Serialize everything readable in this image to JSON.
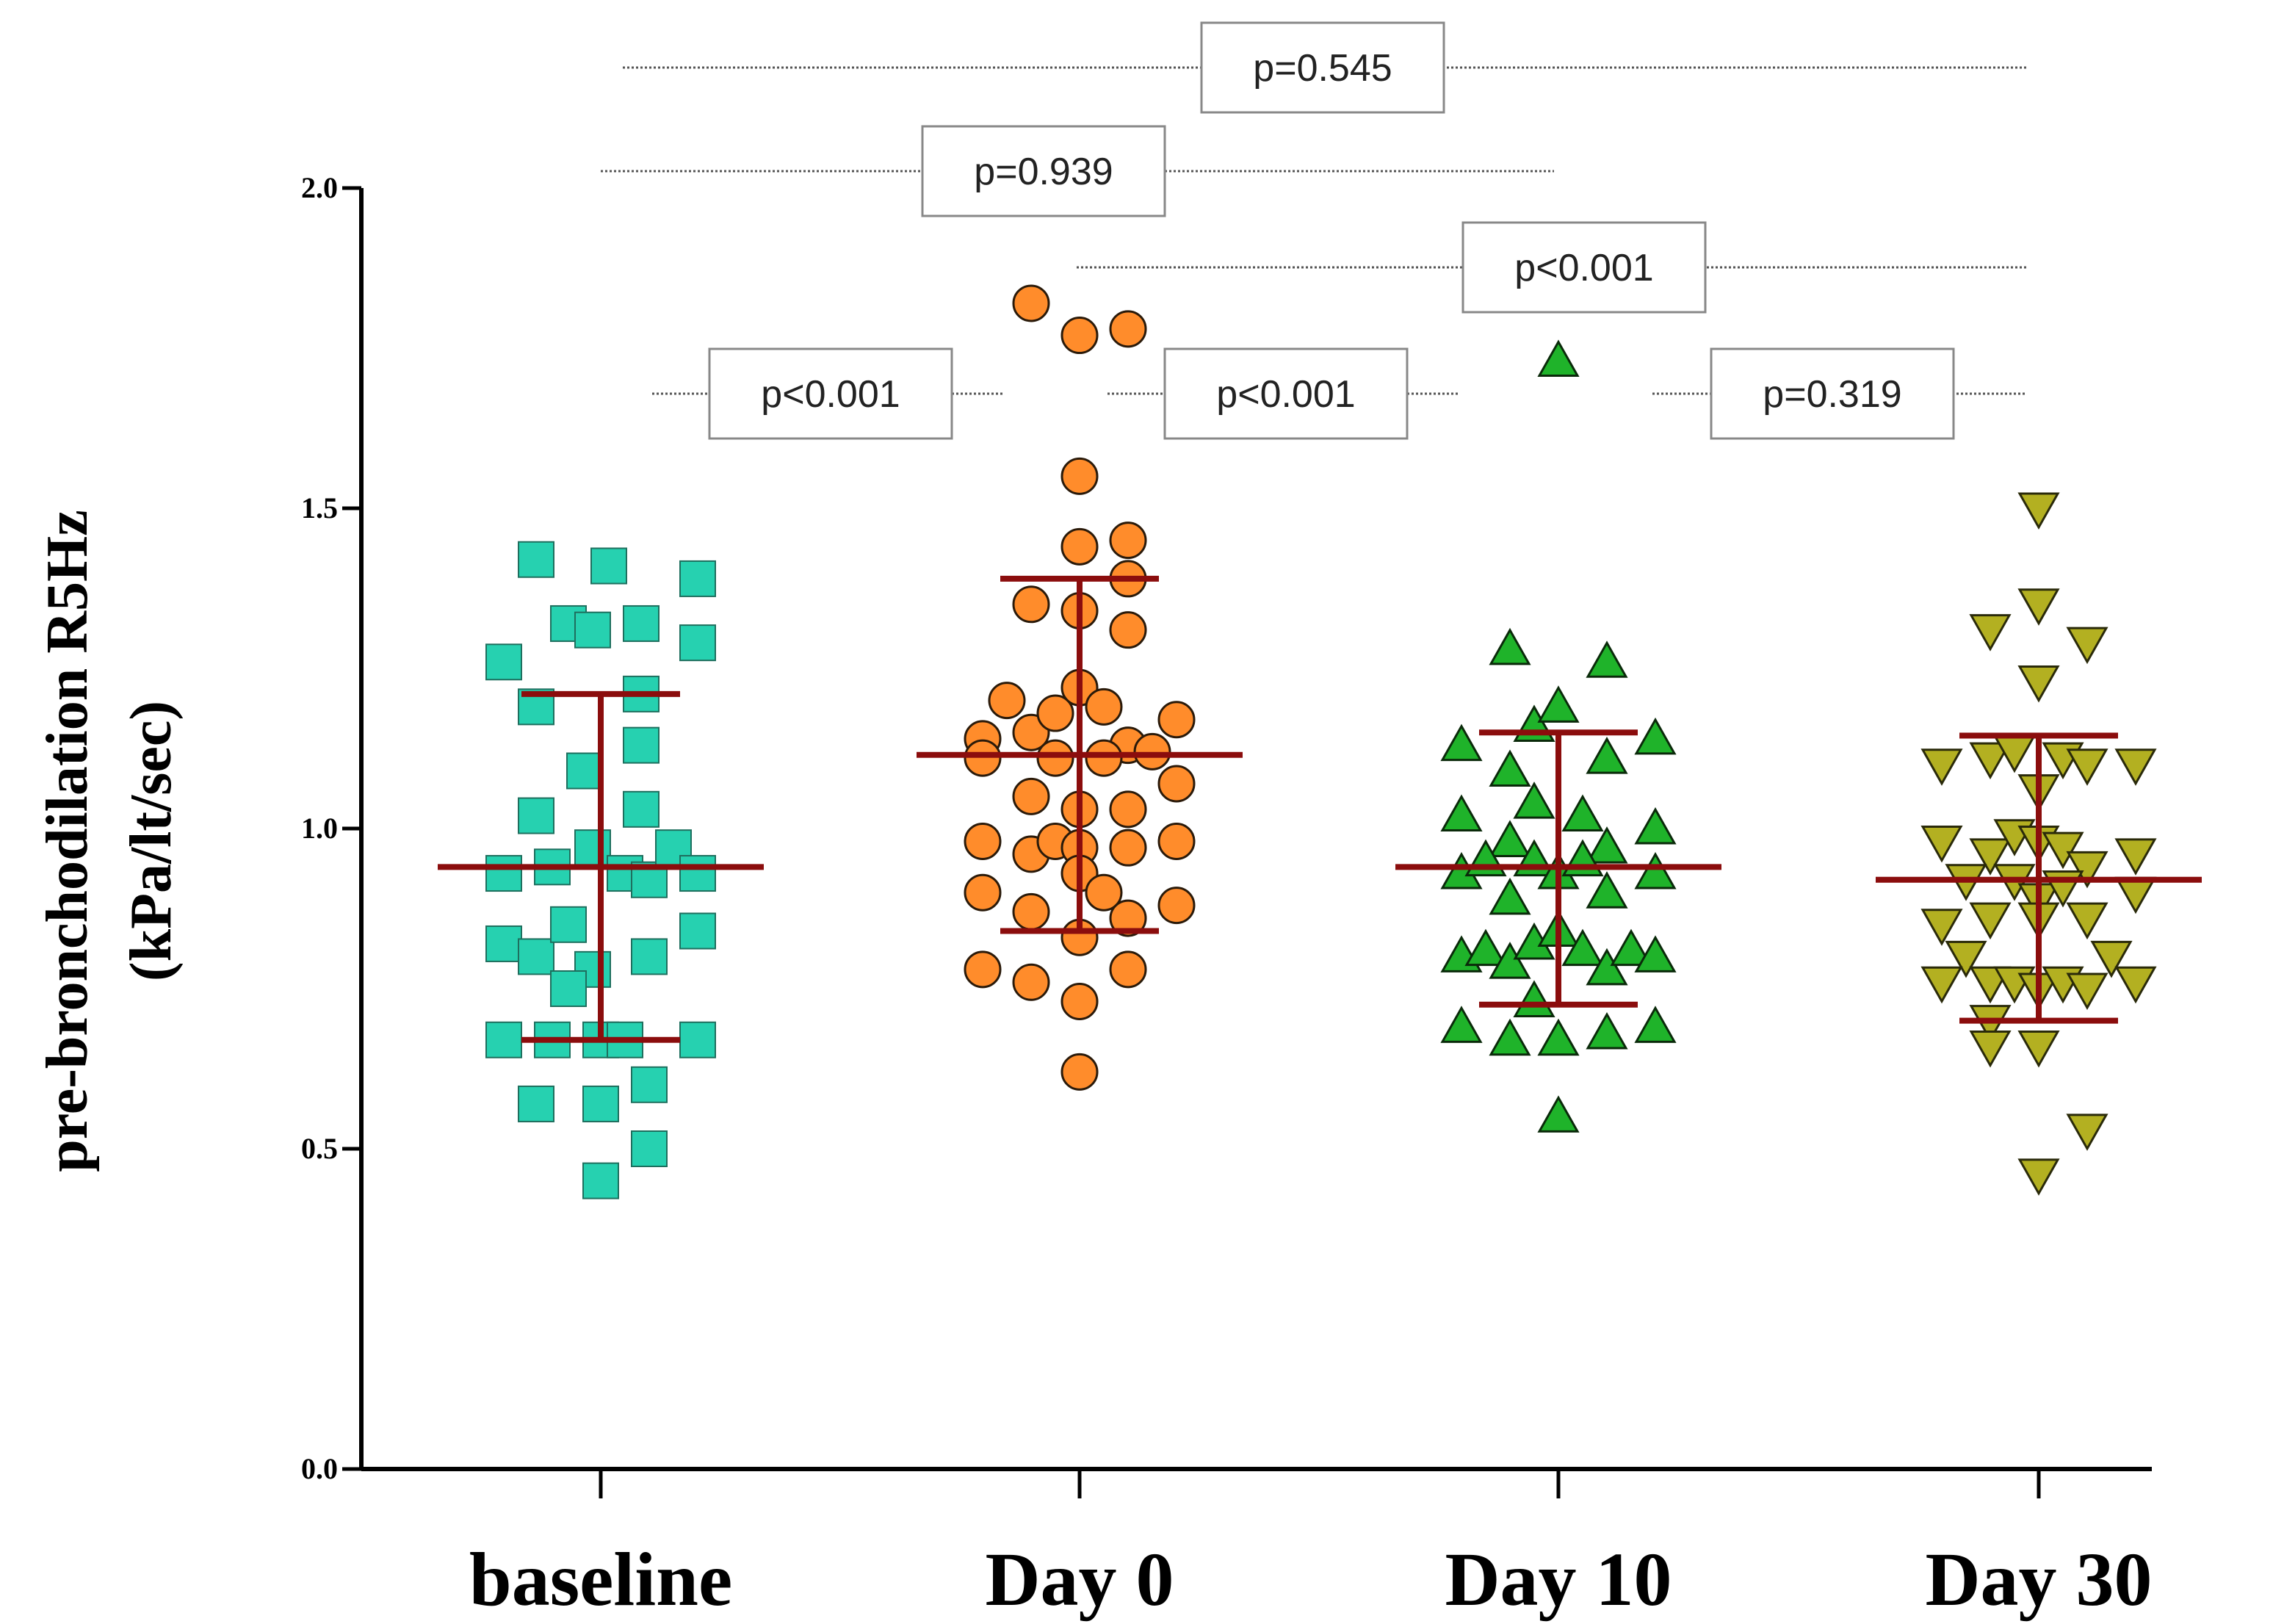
{
  "chart_data": {
    "type": "scatter",
    "subtype": "dot-plot with mean and SD bars",
    "title": "",
    "ylabel_line1": "pre-bronchodilation R5Hz",
    "ylabel_line2": "(kPa/lt/sec)",
    "xlabel": "",
    "ylim": [
      0.0,
      2.0
    ],
    "yticks": [
      "0.0",
      "0.5",
      "1.0",
      "1.5",
      "2.0"
    ],
    "categories": [
      "baseline",
      "Day 0",
      "Day 10",
      "Day 30"
    ],
    "colors": {
      "baseline": "#26d1b0",
      "Day 0": "#ff8c2b",
      "Day 10": "#1fb32a",
      "Day 30": "#b3b021",
      "summary_bars": "#8b0d0d"
    },
    "markers": {
      "baseline": "square",
      "Day 0": "circle",
      "Day 10": "triangle-up",
      "Day 30": "triangle-down"
    },
    "series": [
      {
        "name": "baseline",
        "mean": 0.94,
        "sd_upper": 1.21,
        "sd_lower": 0.67,
        "points": [
          [
            -0.16,
            1.42
          ],
          [
            -0.08,
            1.32
          ],
          [
            -0.24,
            1.26
          ],
          [
            -0.16,
            1.19
          ],
          [
            -0.02,
            1.31
          ],
          [
            0.02,
            1.41
          ],
          [
            0.1,
            1.32
          ],
          [
            0.1,
            1.21
          ],
          [
            0.1,
            1.13
          ],
          [
            0.24,
            1.39
          ],
          [
            0.24,
            1.29
          ],
          [
            -0.16,
            1.02
          ],
          [
            -0.04,
            1.09
          ],
          [
            0.1,
            1.03
          ],
          [
            -0.24,
            0.93
          ],
          [
            -0.12,
            0.94
          ],
          [
            -0.02,
            0.97
          ],
          [
            0.06,
            0.93
          ],
          [
            0.12,
            0.92
          ],
          [
            0.18,
            0.97
          ],
          [
            0.24,
            0.93
          ],
          [
            -0.24,
            0.82
          ],
          [
            -0.16,
            0.8
          ],
          [
            -0.08,
            0.85
          ],
          [
            -0.02,
            0.78
          ],
          [
            0.12,
            0.8
          ],
          [
            0.24,
            0.84
          ],
          [
            -0.08,
            0.75
          ],
          [
            -0.24,
            0.67
          ],
          [
            -0.12,
            0.67
          ],
          [
            0.0,
            0.67
          ],
          [
            0.06,
            0.67
          ],
          [
            0.24,
            0.67
          ],
          [
            -0.16,
            0.57
          ],
          [
            0.0,
            0.57
          ],
          [
            0.12,
            0.6
          ],
          [
            0.12,
            0.5
          ],
          [
            0.0,
            0.45
          ]
        ]
      },
      {
        "name": "Day 0",
        "mean": 1.115,
        "sd_upper": 1.39,
        "sd_lower": 0.84,
        "points": [
          [
            -0.12,
            1.82
          ],
          [
            0.0,
            1.77
          ],
          [
            0.12,
            1.78
          ],
          [
            0.0,
            1.55
          ],
          [
            0.0,
            1.44
          ],
          [
            0.12,
            1.45
          ],
          [
            0.12,
            1.39
          ],
          [
            -0.12,
            1.35
          ],
          [
            0.0,
            1.34
          ],
          [
            0.12,
            1.31
          ],
          [
            -0.18,
            1.2
          ],
          [
            -0.24,
            1.14
          ],
          [
            -0.24,
            1.11
          ],
          [
            -0.12,
            1.15
          ],
          [
            -0.06,
            1.18
          ],
          [
            0.0,
            1.22
          ],
          [
            0.06,
            1.19
          ],
          [
            0.12,
            1.13
          ],
          [
            0.24,
            1.17
          ],
          [
            -0.06,
            1.11
          ],
          [
            0.06,
            1.11
          ],
          [
            0.18,
            1.12
          ],
          [
            -0.12,
            1.05
          ],
          [
            0.0,
            1.03
          ],
          [
            0.12,
            1.03
          ],
          [
            0.24,
            1.07
          ],
          [
            -0.24,
            0.98
          ],
          [
            -0.12,
            0.96
          ],
          [
            -0.06,
            0.98
          ],
          [
            0.0,
            0.97
          ],
          [
            0.12,
            0.97
          ],
          [
            0.24,
            0.98
          ],
          [
            -0.24,
            0.9
          ],
          [
            -0.12,
            0.87
          ],
          [
            0.0,
            0.93
          ],
          [
            0.06,
            0.9
          ],
          [
            0.12,
            0.86
          ],
          [
            0.24,
            0.88
          ],
          [
            -0.24,
            0.78
          ],
          [
            -0.12,
            0.76
          ],
          [
            0.12,
            0.78
          ],
          [
            0.0,
            0.83
          ],
          [
            0.0,
            0.73
          ],
          [
            0.0,
            0.62
          ]
        ]
      },
      {
        "name": "Day 10",
        "mean": 0.94,
        "sd_upper": 1.15,
        "sd_lower": 0.725,
        "points": [
          [
            0.0,
            1.73
          ],
          [
            -0.12,
            1.28
          ],
          [
            0.12,
            1.26
          ],
          [
            -0.24,
            1.13
          ],
          [
            -0.12,
            1.09
          ],
          [
            -0.06,
            1.16
          ],
          [
            0.0,
            1.19
          ],
          [
            0.12,
            1.11
          ],
          [
            0.24,
            1.14
          ],
          [
            -0.24,
            1.02
          ],
          [
            -0.06,
            1.04
          ],
          [
            0.06,
            1.02
          ],
          [
            0.24,
            1.0
          ],
          [
            -0.12,
            0.98
          ],
          [
            0.12,
            0.97
          ],
          [
            -0.24,
            0.93
          ],
          [
            -0.18,
            0.95
          ],
          [
            -0.06,
            0.95
          ],
          [
            0.0,
            0.93
          ],
          [
            0.06,
            0.95
          ],
          [
            0.12,
            0.9
          ],
          [
            0.24,
            0.93
          ],
          [
            -0.12,
            0.89
          ],
          [
            -0.24,
            0.8
          ],
          [
            -0.18,
            0.81
          ],
          [
            -0.12,
            0.79
          ],
          [
            -0.06,
            0.82
          ],
          [
            0.0,
            0.84
          ],
          [
            0.06,
            0.81
          ],
          [
            0.12,
            0.78
          ],
          [
            0.18,
            0.81
          ],
          [
            0.24,
            0.8
          ],
          [
            -0.24,
            0.69
          ],
          [
            -0.12,
            0.67
          ],
          [
            -0.06,
            0.73
          ],
          [
            0.0,
            0.67
          ],
          [
            0.12,
            0.68
          ],
          [
            0.24,
            0.69
          ],
          [
            0.0,
            0.55
          ]
        ]
      },
      {
        "name": "Day 30",
        "mean": 0.92,
        "sd_upper": 1.145,
        "sd_lower": 0.7,
        "points": [
          [
            0.0,
            1.5
          ],
          [
            -0.12,
            1.31
          ],
          [
            0.0,
            1.35
          ],
          [
            0.0,
            1.23
          ],
          [
            0.12,
            1.29
          ],
          [
            -0.24,
            1.1
          ],
          [
            -0.12,
            1.11
          ],
          [
            -0.06,
            1.12
          ],
          [
            0.0,
            1.06
          ],
          [
            0.06,
            1.11
          ],
          [
            0.12,
            1.1
          ],
          [
            0.24,
            1.1
          ],
          [
            -0.24,
            0.98
          ],
          [
            -0.12,
            0.96
          ],
          [
            -0.06,
            0.99
          ],
          [
            0.0,
            0.98
          ],
          [
            0.06,
            0.97
          ],
          [
            0.12,
            0.94
          ],
          [
            0.24,
            0.96
          ],
          [
            -0.18,
            0.92
          ],
          [
            -0.06,
            0.92
          ],
          [
            0.0,
            0.89
          ],
          [
            0.06,
            0.91
          ],
          [
            0.24,
            0.9
          ],
          [
            -0.24,
            0.85
          ],
          [
            -0.12,
            0.86
          ],
          [
            0.0,
            0.86
          ],
          [
            0.12,
            0.86
          ],
          [
            -0.18,
            0.8
          ],
          [
            0.18,
            0.8
          ],
          [
            -0.24,
            0.76
          ],
          [
            -0.12,
            0.76
          ],
          [
            -0.06,
            0.76
          ],
          [
            0.0,
            0.75
          ],
          [
            0.06,
            0.76
          ],
          [
            0.12,
            0.75
          ],
          [
            0.24,
            0.76
          ],
          [
            -0.12,
            0.7
          ],
          [
            0.0,
            0.66
          ],
          [
            -0.12,
            0.66
          ],
          [
            0.12,
            0.53
          ],
          [
            0.0,
            0.46
          ]
        ]
      }
    ],
    "comparisons": [
      {
        "label": "p<0.001",
        "from": "baseline",
        "to": "Day 0"
      },
      {
        "label": "p<0.001",
        "from": "Day 0",
        "to": "Day 10"
      },
      {
        "label": "p=0.319",
        "from": "Day 10",
        "to": "Day 30"
      },
      {
        "label": "p<0.001",
        "from": "Day 0",
        "to": "Day 30"
      },
      {
        "label": "p=0.939",
        "from": "baseline",
        "to": "Day 10"
      },
      {
        "label": "p=0.545",
        "from": "baseline",
        "to": "Day 30"
      }
    ]
  }
}
